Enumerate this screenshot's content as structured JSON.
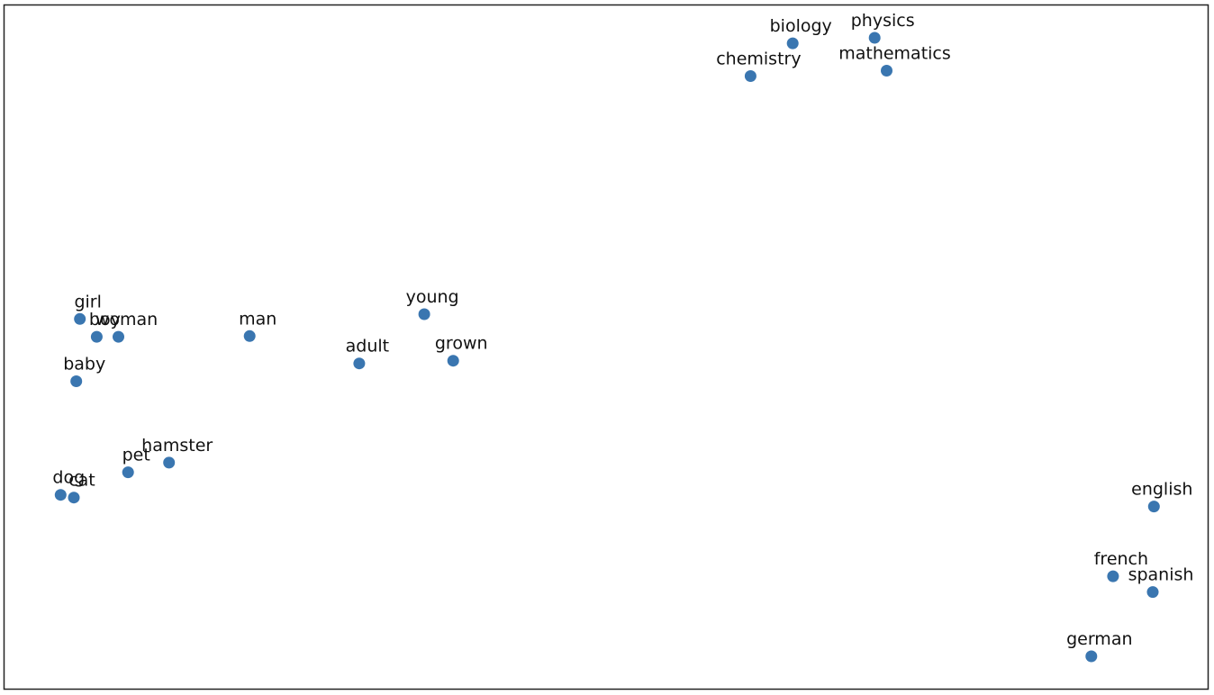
{
  "chart_data": {
    "type": "scatter",
    "title": "",
    "xlabel": "",
    "ylabel": "",
    "grid": false,
    "axes_ticks": false,
    "marker_color": "#3a76b0",
    "xlim": [
      0,
      100
    ],
    "ylim": [
      0,
      100
    ],
    "points": [
      {
        "label": "biology",
        "x": 65.5,
        "y": 94.4
      },
      {
        "label": "physics",
        "x": 72.3,
        "y": 95.2
      },
      {
        "label": "chemistry",
        "x": 62.0,
        "y": 89.6
      },
      {
        "label": "mathematics",
        "x": 73.3,
        "y": 90.4
      },
      {
        "label": "girl",
        "x": 6.3,
        "y": 54.1
      },
      {
        "label": "boy",
        "x": 7.7,
        "y": 51.5
      },
      {
        "label": "woman",
        "x": 9.5,
        "y": 51.5
      },
      {
        "label": "man",
        "x": 20.4,
        "y": 51.6
      },
      {
        "label": "young",
        "x": 34.9,
        "y": 54.8
      },
      {
        "label": "adult",
        "x": 29.5,
        "y": 47.6
      },
      {
        "label": "grown",
        "x": 37.3,
        "y": 48.0
      },
      {
        "label": "baby",
        "x": 6.0,
        "y": 45.0
      },
      {
        "label": "pet",
        "x": 10.3,
        "y": 31.7
      },
      {
        "label": "hamster",
        "x": 13.7,
        "y": 33.1
      },
      {
        "label": "dog",
        "x": 4.7,
        "y": 28.4
      },
      {
        "label": "cat",
        "x": 5.8,
        "y": 28.0
      },
      {
        "label": "english",
        "x": 95.5,
        "y": 26.7
      },
      {
        "label": "french",
        "x": 92.1,
        "y": 16.5
      },
      {
        "label": "spanish",
        "x": 95.4,
        "y": 14.2
      },
      {
        "label": "german",
        "x": 90.3,
        "y": 4.8
      }
    ]
  }
}
